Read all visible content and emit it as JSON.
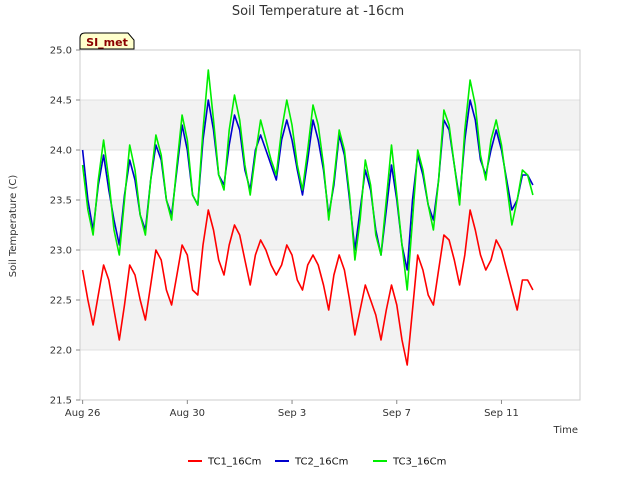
{
  "chart_data": {
    "type": "line",
    "title": "Soil Temperature at -16cm",
    "xlabel": "Time",
    "ylabel": "Soil Temperature (C)",
    "site_label": "SI_met",
    "x_start": "Aug 26",
    "x_end": "Sep 13",
    "ylim": [
      21.5,
      25.0
    ],
    "yticks": [
      "21.5",
      "22.0",
      "22.5",
      "23.0",
      "23.5",
      "24.0",
      "24.5",
      "25.0"
    ],
    "xticks": [
      {
        "label": "Aug 26",
        "day": 0
      },
      {
        "label": "Aug 30",
        "day": 4
      },
      {
        "label": "Sep 3",
        "day": 8
      },
      {
        "label": "Sep 7",
        "day": 12
      },
      {
        "label": "Sep 11",
        "day": 16
      }
    ],
    "grid": "horizontal bands",
    "legend_position": "bottom",
    "x_days": [
      0.0,
      0.2,
      0.4,
      0.6,
      0.8,
      1.0,
      1.2,
      1.4,
      1.6,
      1.8,
      2.0,
      2.2,
      2.4,
      2.6,
      2.8,
      3.0,
      3.2,
      3.4,
      3.6,
      3.8,
      4.0,
      4.2,
      4.4,
      4.6,
      4.8,
      5.0,
      5.2,
      5.4,
      5.6,
      5.8,
      6.0,
      6.2,
      6.4,
      6.6,
      6.8,
      7.0,
      7.2,
      7.4,
      7.6,
      7.8,
      8.0,
      8.2,
      8.4,
      8.6,
      8.8,
      9.0,
      9.2,
      9.4,
      9.6,
      9.8,
      10.0,
      10.2,
      10.4,
      10.6,
      10.8,
      11.0,
      11.2,
      11.4,
      11.6,
      11.8,
      12.0,
      12.2,
      12.4,
      12.6,
      12.8,
      13.0,
      13.2,
      13.4,
      13.6,
      13.8,
      14.0,
      14.2,
      14.4,
      14.6,
      14.8,
      15.0,
      15.2,
      15.4,
      15.6,
      15.8,
      16.0,
      16.2,
      16.4,
      16.6,
      16.8,
      17.0,
      17.2
    ],
    "series": [
      {
        "name": "TC1_16Cm",
        "color": "#ff0000",
        "values": [
          22.8,
          22.5,
          22.25,
          22.55,
          22.85,
          22.7,
          22.4,
          22.1,
          22.45,
          22.85,
          22.75,
          22.5,
          22.3,
          22.65,
          23.0,
          22.9,
          22.6,
          22.45,
          22.75,
          23.05,
          22.95,
          22.6,
          22.55,
          23.05,
          23.4,
          23.2,
          22.9,
          22.75,
          23.05,
          23.25,
          23.15,
          22.9,
          22.65,
          22.95,
          23.1,
          23.0,
          22.85,
          22.75,
          22.85,
          23.05,
          22.95,
          22.7,
          22.6,
          22.85,
          22.95,
          22.85,
          22.65,
          22.4,
          22.75,
          22.95,
          22.8,
          22.5,
          22.15,
          22.4,
          22.65,
          22.5,
          22.35,
          22.1,
          22.4,
          22.65,
          22.45,
          22.1,
          21.85,
          22.4,
          22.95,
          22.8,
          22.55,
          22.45,
          22.8,
          23.15,
          23.1,
          22.9,
          22.65,
          22.95,
          23.4,
          23.2,
          22.95,
          22.8,
          22.9,
          23.1,
          23.0,
          22.8,
          22.6,
          22.4,
          22.7,
          22.7,
          22.6
        ]
      },
      {
        "name": "TC2_16Cm",
        "color": "#0000cc",
        "values": [
          24.0,
          23.5,
          23.2,
          23.65,
          23.95,
          23.6,
          23.3,
          23.05,
          23.55,
          23.9,
          23.7,
          23.35,
          23.2,
          23.7,
          24.05,
          23.9,
          23.5,
          23.35,
          23.8,
          24.25,
          24.0,
          23.55,
          23.45,
          24.1,
          24.5,
          24.2,
          23.75,
          23.65,
          24.05,
          24.35,
          24.2,
          23.8,
          23.6,
          24.0,
          24.15,
          24.0,
          23.85,
          23.7,
          24.1,
          24.3,
          24.1,
          23.8,
          23.55,
          23.9,
          24.3,
          24.1,
          23.8,
          23.35,
          23.65,
          24.15,
          23.95,
          23.5,
          23.0,
          23.4,
          23.8,
          23.6,
          23.2,
          22.95,
          23.4,
          23.85,
          23.5,
          23.05,
          22.8,
          23.5,
          23.95,
          23.75,
          23.45,
          23.3,
          23.7,
          24.3,
          24.2,
          23.85,
          23.5,
          24.1,
          24.5,
          24.3,
          23.9,
          23.75,
          24.0,
          24.2,
          24.0,
          23.7,
          23.4,
          23.5,
          23.75,
          23.75,
          23.65
        ]
      },
      {
        "name": "TC3_16Cm",
        "color": "#00ee00",
        "values": [
          23.85,
          23.4,
          23.15,
          23.7,
          24.1,
          23.7,
          23.2,
          22.95,
          23.5,
          24.05,
          23.8,
          23.35,
          23.15,
          23.7,
          24.15,
          23.95,
          23.5,
          23.3,
          23.85,
          24.35,
          24.1,
          23.55,
          23.45,
          24.2,
          24.8,
          24.3,
          23.75,
          23.6,
          24.2,
          24.55,
          24.3,
          23.85,
          23.55,
          23.95,
          24.3,
          24.1,
          23.9,
          23.75,
          24.2,
          24.5,
          24.25,
          23.85,
          23.6,
          24.0,
          24.45,
          24.25,
          23.85,
          23.3,
          23.7,
          24.2,
          24.0,
          23.55,
          22.9,
          23.3,
          23.9,
          23.65,
          23.15,
          22.95,
          23.5,
          24.05,
          23.55,
          23.05,
          22.6,
          23.3,
          24.0,
          23.8,
          23.45,
          23.2,
          23.7,
          24.4,
          24.25,
          23.85,
          23.45,
          24.2,
          24.7,
          24.45,
          23.95,
          23.7,
          24.1,
          24.3,
          24.05,
          23.65,
          23.25,
          23.5,
          23.8,
          23.75,
          23.55
        ]
      }
    ]
  }
}
